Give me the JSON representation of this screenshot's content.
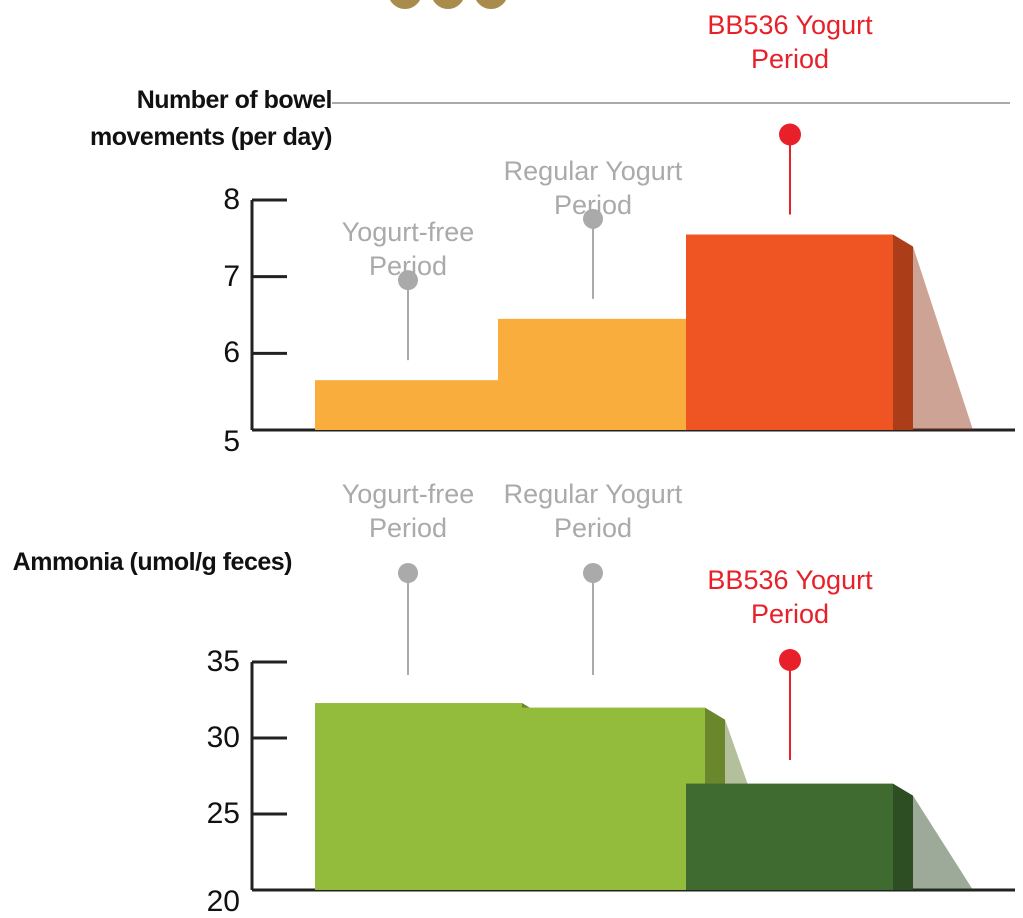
{
  "chart_data": [
    {
      "type": "bar",
      "title": "Number of bowel movements (per day)",
      "categories": [
        "Yogurt-free Period",
        "Regular Yogurt Period",
        "BB536 Yogurt Period"
      ],
      "values": [
        5.65,
        6.45,
        7.55
      ],
      "colors": [
        "#f8ad3d",
        "#f8ad3d",
        "#ef5523"
      ],
      "label_colors": [
        "#aaaaaa",
        "#aaaaaa",
        "#e8202a"
      ],
      "ylim": [
        5,
        8
      ],
      "yticks": [
        5,
        6,
        7,
        8
      ]
    },
    {
      "type": "bar",
      "title": "Ammonia (umol/g feces)",
      "categories": [
        "Yogurt-free Period",
        "Regular Yogurt Period",
        "BB536 Yogurt Period"
      ],
      "values": [
        32.3,
        32.0,
        27.0
      ],
      "colors": [
        "#93bb3c",
        "#93bb3c",
        "#3f6b30"
      ],
      "label_colors": [
        "#aaaaaa",
        "#aaaaaa",
        "#e8202a"
      ],
      "ylim": [
        20,
        35
      ],
      "yticks": [
        20,
        25,
        30,
        35
      ]
    }
  ]
}
